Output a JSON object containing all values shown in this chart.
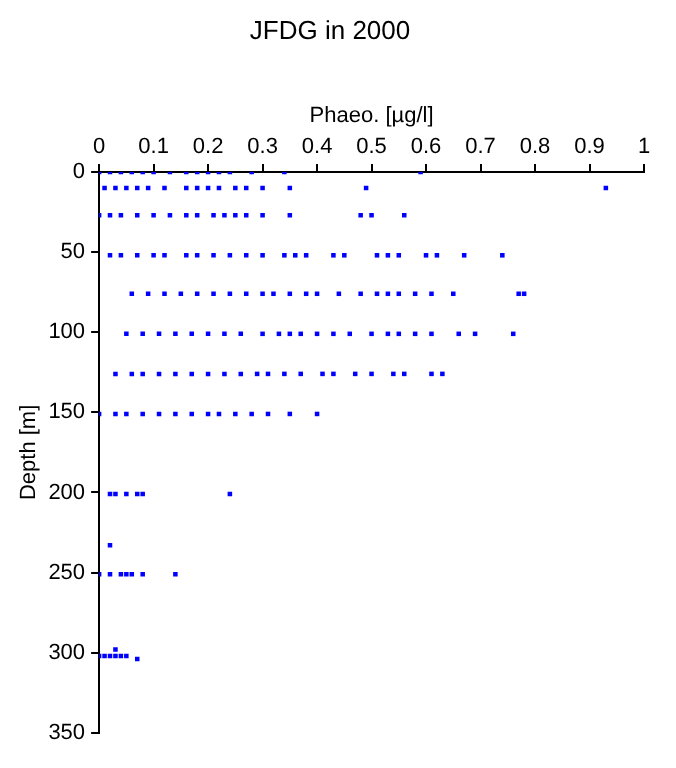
{
  "chart_data": {
    "type": "scatter",
    "title": "JFDG in 2000",
    "xlabel": "Phaeo. [µg/l]",
    "ylabel": "Depth [m]",
    "xlim": [
      0,
      1
    ],
    "xticks": [
      0,
      0.1,
      0.2,
      0.3,
      0.4,
      0.5,
      0.6,
      0.7,
      0.8,
      0.9,
      1
    ],
    "ylim": [
      350,
      0
    ],
    "yticks": [
      0,
      50,
      100,
      150,
      200,
      250,
      300,
      350
    ],
    "grid": false,
    "legend": false,
    "marker": "square",
    "series": [
      {
        "color": "#0000ff",
        "x": [
          0.0,
          0.02,
          0.04,
          0.06,
          0.08,
          0.1,
          0.13,
          0.16,
          0.18,
          0.2,
          0.22,
          0.24,
          0.28,
          0.34,
          0.59,
          0.01,
          0.03,
          0.05,
          0.07,
          0.09,
          0.12,
          0.16,
          0.18,
          0.2,
          0.22,
          0.25,
          0.27,
          0.3,
          0.35,
          0.49,
          0.93,
          0.0,
          0.02,
          0.04,
          0.07,
          0.1,
          0.13,
          0.16,
          0.18,
          0.21,
          0.23,
          0.25,
          0.27,
          0.3,
          0.35,
          0.48,
          0.5,
          0.56,
          0.02,
          0.04,
          0.07,
          0.1,
          0.12,
          0.16,
          0.18,
          0.21,
          0.24,
          0.27,
          0.3,
          0.34,
          0.36,
          0.38,
          0.43,
          0.45,
          0.51,
          0.53,
          0.55,
          0.6,
          0.62,
          0.67,
          0.74,
          0.06,
          0.09,
          0.12,
          0.15,
          0.18,
          0.21,
          0.24,
          0.27,
          0.3,
          0.32,
          0.35,
          0.38,
          0.4,
          0.44,
          0.48,
          0.51,
          0.53,
          0.55,
          0.58,
          0.61,
          0.65,
          0.77,
          0.78,
          0.05,
          0.08,
          0.11,
          0.14,
          0.17,
          0.2,
          0.23,
          0.26,
          0.3,
          0.33,
          0.35,
          0.37,
          0.4,
          0.43,
          0.46,
          0.5,
          0.53,
          0.55,
          0.58,
          0.61,
          0.66,
          0.69,
          0.76,
          0.03,
          0.06,
          0.08,
          0.11,
          0.14,
          0.17,
          0.2,
          0.23,
          0.26,
          0.29,
          0.31,
          0.34,
          0.37,
          0.41,
          0.43,
          0.47,
          0.5,
          0.54,
          0.56,
          0.61,
          0.63,
          0.0,
          0.03,
          0.05,
          0.08,
          0.11,
          0.14,
          0.17,
          0.2,
          0.22,
          0.25,
          0.28,
          0.31,
          0.35,
          0.4,
          0.02,
          0.03,
          0.05,
          0.07,
          0.08,
          0.24,
          0.02,
          0.0,
          0.02,
          0.04,
          0.05,
          0.06,
          0.08,
          0.14,
          0.0,
          0.01,
          0.02,
          0.03,
          0.04,
          0.05,
          0.03,
          0.07
        ],
        "values": [
          0,
          0,
          0,
          0,
          0,
          0,
          0,
          0,
          0,
          0,
          0,
          0,
          0,
          0,
          0,
          10,
          10,
          10,
          10,
          10,
          10,
          10,
          10,
          10,
          10,
          10,
          10,
          10,
          10,
          10,
          10,
          27,
          27,
          27,
          27,
          27,
          27,
          27,
          27,
          27,
          27,
          27,
          27,
          27,
          27,
          27,
          27,
          27,
          52,
          52,
          52,
          52,
          52,
          52,
          52,
          52,
          52,
          52,
          52,
          52,
          52,
          52,
          52,
          52,
          52,
          52,
          52,
          52,
          52,
          52,
          52,
          76,
          76,
          76,
          76,
          76,
          76,
          76,
          76,
          76,
          76,
          76,
          76,
          76,
          76,
          76,
          76,
          76,
          76,
          76,
          76,
          76,
          76,
          76,
          101,
          101,
          101,
          101,
          101,
          101,
          101,
          101,
          101,
          101,
          101,
          101,
          101,
          101,
          101,
          101,
          101,
          101,
          101,
          101,
          101,
          101,
          101,
          126,
          126,
          126,
          126,
          126,
          126,
          126,
          126,
          126,
          126,
          126,
          126,
          126,
          126,
          126,
          126,
          126,
          126,
          126,
          126,
          126,
          151,
          151,
          151,
          151,
          151,
          151,
          151,
          151,
          151,
          151,
          151,
          151,
          151,
          151,
          201,
          201,
          201,
          201,
          201,
          201,
          233,
          251,
          251,
          251,
          251,
          251,
          251,
          251,
          302,
          302,
          302,
          302,
          302,
          302,
          298,
          304
        ]
      }
    ]
  }
}
